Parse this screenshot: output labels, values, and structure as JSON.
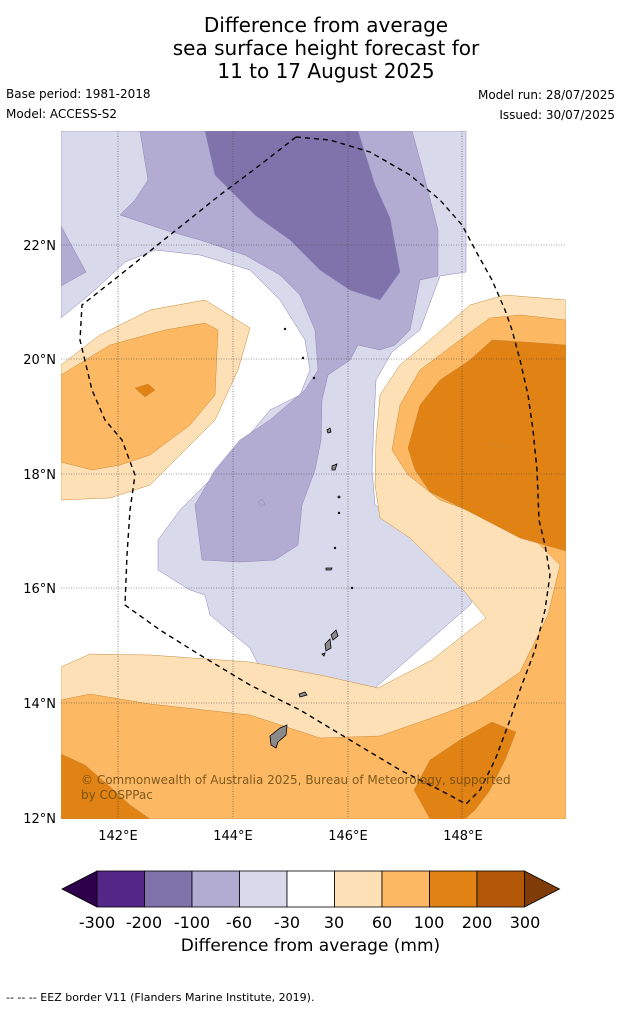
{
  "title_lines": [
    "Difference from average",
    "sea surface height forecast for",
    "11 to 17 August 2025"
  ],
  "meta": {
    "base_period": "Base period: 1981-2018",
    "model": "Model: ACCESS-S2",
    "model_run": "Model run: 28/07/2025",
    "issued": "Issued: 30/07/2025"
  },
  "map": {
    "lat_ticks": [
      "22°N",
      "20°N",
      "18°N",
      "16°N",
      "14°N",
      "12°N"
    ],
    "lon_ticks": [
      "142°E",
      "144°E",
      "146°E",
      "148°E"
    ],
    "copyright": "© Commonwealth of Australia 2025, Bureau of Meteorology, supported by COSPPac",
    "copyright_line1": "© Commonwealth of Australia 2025, Bureau of Meteorology, supported",
    "copyright_line2": "by COSPPac",
    "colors": {
      "m300": "#2d004b",
      "m200": "#542788",
      "m100": "#8073ac",
      "m60": "#b2abd2",
      "m30": "#d8daeb",
      "zero": "#ffffff",
      "p30": "#fee0b6",
      "p60": "#fdb863",
      "p100": "#e08214",
      "p200": "#b35806",
      "p300": "#7f3b08"
    }
  },
  "colorbar": {
    "labels": [
      "-300",
      "-200",
      "-100",
      "-60",
      "-30",
      "30",
      "60",
      "100",
      "200",
      "300"
    ],
    "title": "Difference from average (mm)"
  },
  "footer": "--  --  -- EEZ border V11 (Flanders Marine Institute, 2019)."
}
